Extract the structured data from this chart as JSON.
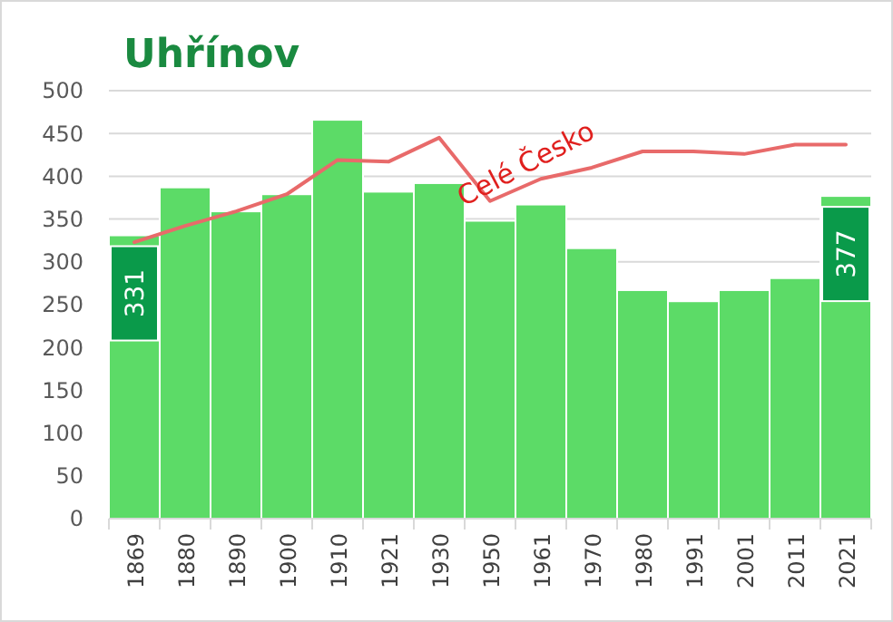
{
  "chart_data": {
    "type": "bar",
    "title": "Uhřínov",
    "categories": [
      "1869",
      "1880",
      "1890",
      "1900",
      "1910",
      "1921",
      "1930",
      "1950",
      "1961",
      "1970",
      "1980",
      "1991",
      "2001",
      "2011",
      "2021"
    ],
    "series": [
      {
        "color": "#5cdb67",
        "values": [
          331,
          387,
          359,
          379,
          466,
          382,
          392,
          348,
          367,
          316,
          267,
          254,
          267,
          281,
          377
        ],
        "value_labels": [
          "331",
          null,
          null,
          null,
          null,
          null,
          null,
          null,
          null,
          null,
          null,
          null,
          null,
          null,
          "377"
        ]
      },
      {
        "type": "line",
        "name": "Celé Česko",
        "color": "#e86a6a",
        "values": [
          323,
          342,
          359,
          379,
          419,
          417,
          445,
          371,
          397,
          410,
          429,
          429,
          426,
          437,
          437
        ]
      }
    ],
    "ylim": [
      0,
      500
    ],
    "yticks": [
      0,
      50,
      100,
      150,
      200,
      250,
      300,
      350,
      400,
      450,
      500
    ],
    "grid": "y"
  }
}
